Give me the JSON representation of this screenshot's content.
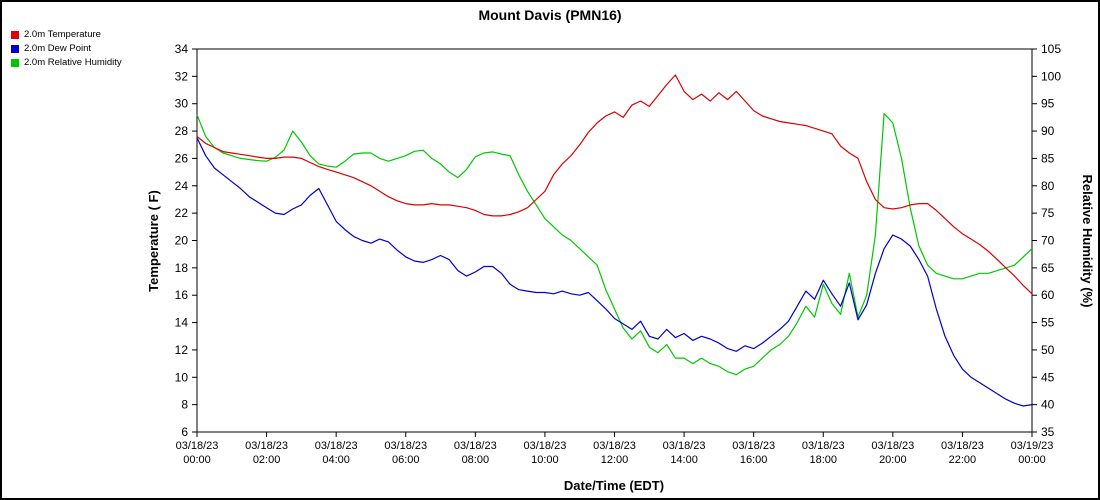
{
  "title": "Mount Davis (PMN16)",
  "chart_data": {
    "type": "line",
    "title": "Mount Davis (PMN16)",
    "xlabel": "Date/Time (EDT)",
    "grid": false,
    "legend_position": "top-left",
    "x_range": [
      0,
      24
    ],
    "x_start": 0,
    "x_step": 0.25,
    "x_ticks": [
      {
        "t": 0,
        "date": "03/18/23",
        "time": "00:00"
      },
      {
        "t": 2,
        "date": "03/18/23",
        "time": "02:00"
      },
      {
        "t": 4,
        "date": "03/18/23",
        "time": "04:00"
      },
      {
        "t": 6,
        "date": "03/18/23",
        "time": "06:00"
      },
      {
        "t": 8,
        "date": "03/18/23",
        "time": "08:00"
      },
      {
        "t": 10,
        "date": "03/18/23",
        "time": "10:00"
      },
      {
        "t": 12,
        "date": "03/18/23",
        "time": "12:00"
      },
      {
        "t": 14,
        "date": "03/18/23",
        "time": "14:00"
      },
      {
        "t": 16,
        "date": "03/18/23",
        "time": "16:00"
      },
      {
        "t": 18,
        "date": "03/18/23",
        "time": "18:00"
      },
      {
        "t": 20,
        "date": "03/18/23",
        "time": "20:00"
      },
      {
        "t": 22,
        "date": "03/18/23",
        "time": "22:00"
      },
      {
        "t": 24,
        "date": "03/19/23",
        "time": "00:00"
      }
    ],
    "left_axis": {
      "label": "Temperature ( F)",
      "range": [
        6,
        34
      ],
      "ticks": [
        6,
        8,
        10,
        12,
        14,
        16,
        18,
        20,
        22,
        24,
        26,
        28,
        30,
        32,
        34
      ]
    },
    "right_axis": {
      "label": "Relative Humidity (%)",
      "range": [
        35,
        105
      ],
      "ticks": [
        35,
        40,
        45,
        50,
        55,
        60,
        65,
        70,
        75,
        80,
        85,
        90,
        95,
        100,
        105
      ]
    },
    "series": [
      {
        "id": "temperature",
        "name": "2.0m Temperature",
        "color": "#dd0000",
        "axis": "left",
        "values": [
          27.6,
          27.1,
          26.8,
          26.5,
          26.4,
          26.3,
          26.2,
          26.1,
          26.0,
          26.0,
          26.1,
          26.1,
          26.0,
          25.7,
          25.4,
          25.2,
          25.0,
          24.8,
          24.6,
          24.3,
          24.0,
          23.6,
          23.2,
          22.9,
          22.7,
          22.6,
          22.6,
          22.7,
          22.6,
          22.6,
          22.5,
          22.4,
          22.2,
          21.9,
          21.8,
          21.8,
          21.9,
          22.1,
          22.4,
          23.0,
          23.6,
          24.8,
          25.6,
          26.2,
          27.0,
          27.9,
          28.6,
          29.1,
          29.4,
          29.0,
          29.9,
          30.2,
          29.8,
          30.6,
          31.4,
          32.1,
          30.9,
          30.3,
          30.7,
          30.2,
          30.8,
          30.3,
          30.9,
          30.2,
          29.5,
          29.1,
          28.9,
          28.7,
          28.6,
          28.5,
          28.4,
          28.2,
          28.0,
          27.8,
          26.9,
          26.4,
          26.0,
          24.3,
          23.0,
          22.4,
          22.3,
          22.4,
          22.6,
          22.7,
          22.7,
          22.2,
          21.6,
          21.0,
          20.5,
          20.1,
          19.7,
          19.2,
          18.6,
          18.0,
          17.4,
          16.7,
          16.1
        ]
      },
      {
        "id": "dew-point",
        "name": "2.0m Dew Point",
        "color": "#0000cc",
        "axis": "left",
        "values": [
          27.5,
          26.2,
          25.3,
          24.8,
          24.3,
          23.8,
          23.2,
          22.8,
          22.4,
          22.0,
          21.9,
          22.3,
          22.6,
          23.3,
          23.8,
          22.6,
          21.4,
          20.8,
          20.3,
          20.0,
          19.8,
          20.1,
          19.9,
          19.3,
          18.8,
          18.5,
          18.4,
          18.6,
          18.9,
          18.6,
          17.8,
          17.4,
          17.7,
          18.1,
          18.1,
          17.6,
          16.8,
          16.4,
          16.3,
          16.2,
          16.2,
          16.1,
          16.3,
          16.1,
          16.0,
          16.2,
          15.6,
          15.0,
          14.3,
          13.9,
          13.5,
          14.1,
          13.0,
          12.8,
          13.5,
          12.9,
          13.2,
          12.7,
          13.0,
          12.8,
          12.5,
          12.1,
          11.9,
          12.3,
          12.1,
          12.5,
          13.0,
          13.5,
          14.1,
          15.2,
          16.3,
          15.7,
          17.1,
          16.1,
          15.2,
          16.9,
          14.2,
          15.3,
          17.6,
          19.4,
          20.4,
          20.1,
          19.6,
          18.6,
          17.4,
          15.0,
          13.0,
          11.6,
          10.6,
          10.0,
          9.6,
          9.2,
          8.8,
          8.4,
          8.1,
          7.9,
          8.0
        ]
      },
      {
        "id": "relative-humidity",
        "name": "2.0m Relative Humidity",
        "color": "#00c800",
        "axis": "right",
        "values": [
          93.0,
          89.0,
          87.0,
          86.0,
          85.5,
          85.0,
          84.8,
          84.6,
          84.5,
          85.2,
          86.5,
          90.0,
          88.0,
          85.5,
          84.0,
          83.6,
          83.4,
          84.5,
          85.8,
          86.0,
          86.0,
          85.0,
          84.5,
          85.0,
          85.5,
          86.3,
          86.5,
          85.0,
          84.0,
          82.5,
          81.5,
          83.0,
          85.3,
          86.0,
          86.2,
          85.8,
          85.5,
          82.0,
          79.0,
          76.5,
          74.0,
          72.5,
          71.0,
          70.0,
          68.5,
          67.0,
          65.5,
          61.0,
          57.5,
          54.0,
          52.0,
          53.5,
          50.5,
          49.5,
          51.0,
          48.5,
          48.5,
          47.5,
          48.5,
          47.5,
          47.0,
          46.0,
          45.5,
          46.5,
          47.0,
          48.5,
          50.0,
          51.0,
          52.5,
          55.0,
          58.0,
          56.0,
          62.0,
          58.5,
          56.5,
          64.0,
          56.0,
          60.0,
          71.0,
          93.2,
          91.5,
          85.0,
          76.0,
          69.0,
          65.5,
          64.0,
          63.5,
          63.0,
          63.0,
          63.5,
          64.0,
          64.0,
          64.5,
          65.0,
          65.5,
          67.0,
          68.5
        ]
      }
    ]
  }
}
